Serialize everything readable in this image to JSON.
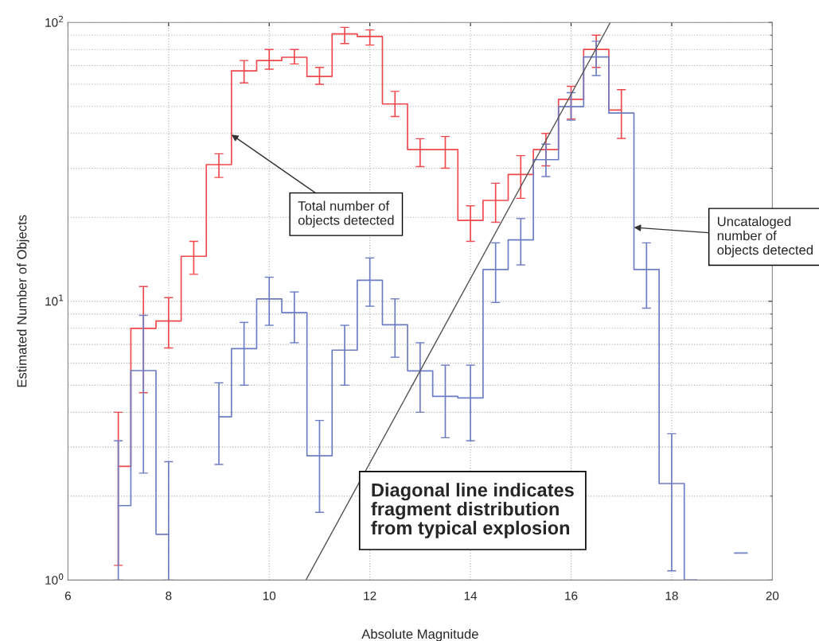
{
  "chart_data": {
    "type": "step",
    "xlabel": "Absolute Magnitude",
    "ylabel": "Estimated Number of Objects",
    "log": "y",
    "grid": true,
    "line_style": "solid",
    "marker": "none",
    "xlim": [
      6,
      20
    ],
    "xticks": [
      6,
      8,
      10,
      12,
      14,
      16,
      18,
      20
    ],
    "ylim": [
      1,
      100
    ],
    "yticks": [
      {
        "value": 1,
        "label": "10$^{0}$"
      },
      {
        "value": 10,
        "label": "10$^{1}$"
      },
      {
        "value": 100,
        "label": "10$^{2}$"
      }
    ],
    "x": [
      7,
      7.5,
      8,
      8.5,
      9,
      9.5,
      10,
      10.5,
      11,
      11.5,
      12,
      12.5,
      13,
      13.5,
      14,
      14.5,
      15,
      15.5,
      16,
      16.5,
      17,
      17.5,
      18,
      18.5,
      19,
      19.5
    ],
    "series": [
      {
        "color": "#f0484c",
        "values": [
          2.56,
          8.0,
          8.5,
          14.5,
          30.9,
          67,
          73,
          75,
          64,
          91,
          89,
          51,
          35,
          35,
          19.5,
          23,
          28.5,
          35,
          53,
          80,
          48.5,
          null,
          null,
          null,
          null,
          null
        ],
        "errors": [
          [
            1.13,
            4.0
          ],
          [
            4.7,
            11.3
          ],
          [
            6.8,
            10.3
          ],
          [
            12.5,
            16.4
          ],
          [
            27.8,
            33.8
          ],
          [
            60.7,
            73
          ],
          [
            68,
            80
          ],
          [
            71,
            80
          ],
          [
            60,
            69
          ],
          [
            84,
            96
          ],
          [
            83,
            94
          ],
          [
            46,
            56.6
          ],
          [
            30.4,
            38.3
          ],
          [
            30,
            39
          ],
          [
            16.4,
            22
          ],
          [
            19.2,
            26.5
          ],
          [
            23.4,
            33.3
          ],
          [
            30.6,
            40
          ],
          [
            45,
            59
          ],
          [
            69,
            90
          ],
          [
            38.4,
            57.4
          ],
          null,
          null,
          null,
          null,
          null
        ]
      },
      {
        "color": "#6c7cc4",
        "values": [
          1.85,
          5.64,
          1.46,
          null,
          3.85,
          6.76,
          10.2,
          9.1,
          2.79,
          6.68,
          11.9,
          8.24,
          5.63,
          4.56,
          4.5,
          13.0,
          16.6,
          32.2,
          49.9,
          75.2,
          47.3,
          13.0,
          2.22,
          1.0,
          null,
          1.25
        ],
        "errors": [
          [
            1.0,
            3.16
          ],
          [
            2.42,
            8.9
          ],
          [
            1.0,
            2.66
          ],
          null,
          [
            2.6,
            5.1
          ],
          [
            5.0,
            8.4
          ],
          [
            8.2,
            12.2
          ],
          [
            7.1,
            10.8
          ],
          [
            1.75,
            3.74
          ],
          [
            5.0,
            8.2
          ],
          [
            9.6,
            14.3
          ],
          [
            6.3,
            10.2
          ],
          [
            4.0,
            7.1
          ],
          [
            3.24,
            5.9
          ],
          [
            3.16,
            5.9
          ],
          [
            9.9,
            16.2
          ],
          [
            13.5,
            19.8
          ],
          [
            28.0,
            36.6
          ],
          [
            44.6,
            56
          ],
          [
            64.5,
            85.6
          ],
          null,
          [
            9.45,
            16.2
          ],
          [
            1.08,
            3.35
          ],
          null,
          null,
          null
        ]
      },
      {
        "type": "line",
        "color": "#555555",
        "x": [
          10.73,
          16.78
        ],
        "values": [
          1,
          100
        ]
      }
    ],
    "annotations": [
      {
        "text": "Total number of\nobjects detected",
        "x": 9.25,
        "y": 39.6
      },
      {
        "text": "Uncataloged\nnumber of\nobjects detected",
        "x": 17.25,
        "y": 18.4
      },
      "Diagonal line indicates\nfragment distribution\nfrom typical explosion"
    ]
  }
}
